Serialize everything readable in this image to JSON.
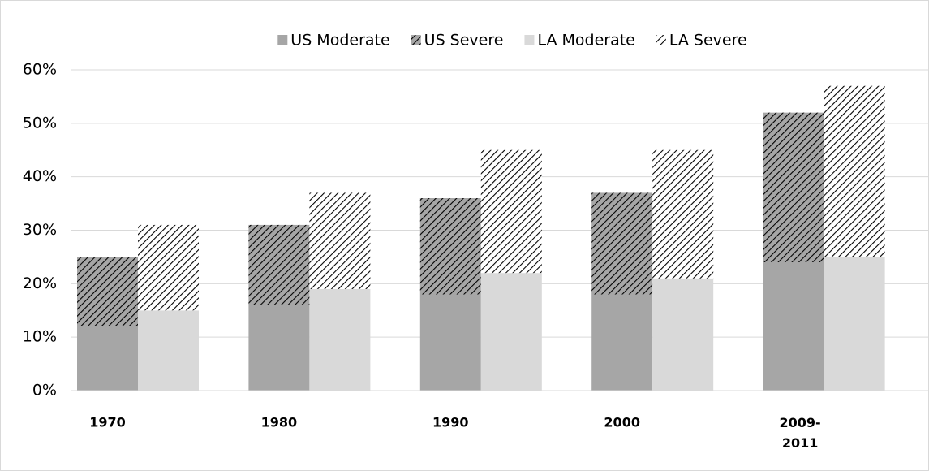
{
  "chart_data": {
    "type": "bar",
    "categories": [
      "1970",
      "1980",
      "1990",
      "2000",
      "2009-2011"
    ],
    "series": [
      {
        "name": "US Moderate",
        "color": "#a6a6a6",
        "hatch": false,
        "values": [
          12,
          16,
          18,
          18,
          24
        ]
      },
      {
        "name": "US Severe",
        "color": "#a6a6a6",
        "hatch": true,
        "values": [
          13,
          15,
          18,
          19,
          28
        ]
      },
      {
        "name": "LA Moderate",
        "color": "#d9d9d9",
        "hatch": false,
        "values": [
          15,
          19,
          22,
          21,
          25
        ]
      },
      {
        "name": "LA Severe",
        "color": "#ffffff",
        "hatch": true,
        "values": [
          16,
          18,
          23,
          24,
          32
        ]
      }
    ],
    "ylim": [
      0,
      60
    ],
    "yticks": [
      {
        "value": 0,
        "label": "0%"
      },
      {
        "value": 10,
        "label": "10%"
      },
      {
        "value": 20,
        "label": "20%"
      },
      {
        "value": 30,
        "label": "30%"
      },
      {
        "value": 40,
        "label": "40%"
      },
      {
        "value": 50,
        "label": "50%"
      },
      {
        "value": 60,
        "label": "60%"
      }
    ],
    "grid": true,
    "legend": "top"
  }
}
